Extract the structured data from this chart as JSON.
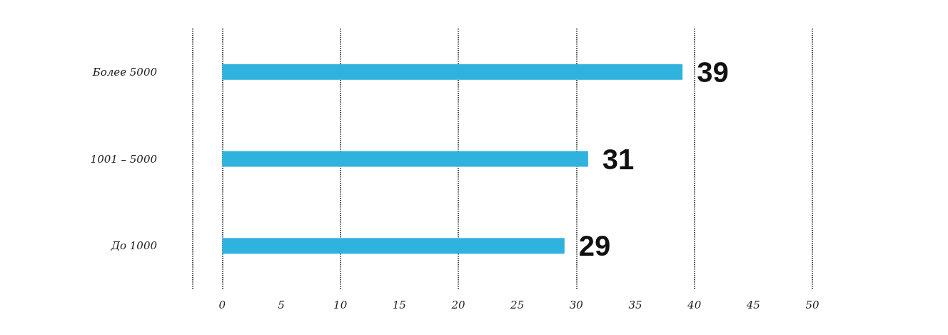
{
  "chart_data": {
    "type": "bar",
    "orientation": "horizontal",
    "categories": [
      "Более 5000",
      "1001 – 5000",
      "До 1000"
    ],
    "values": [
      39,
      31,
      29
    ],
    "color": "#2fb3de",
    "data_labels": true,
    "xlim": [
      -2.5,
      50
    ],
    "xticks": [
      0,
      5,
      10,
      15,
      20,
      25,
      30,
      35,
      40,
      45,
      50
    ],
    "grid": "x",
    "line_style": "dotted"
  }
}
